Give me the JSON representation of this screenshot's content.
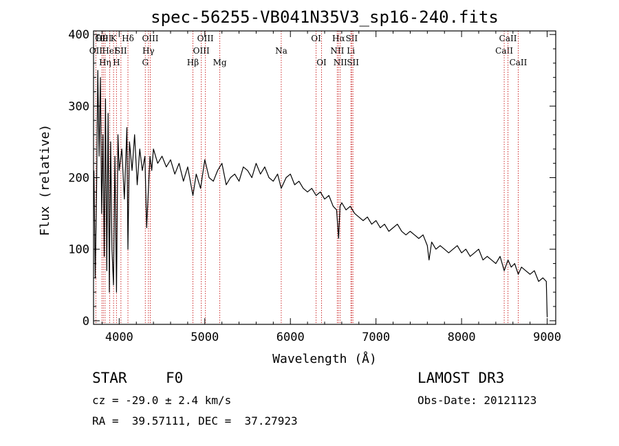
{
  "chart_data": {
    "type": "line",
    "title": "spec-56255-VB041N35V3_sp16-240.fits",
    "xlabel": "Wavelength (Å)",
    "ylabel": "Flux (relative)",
    "xlim": [
      3700,
      9100
    ],
    "ylim": [
      -5,
      405
    ],
    "xticks": [
      4000,
      5000,
      6000,
      7000,
      8000,
      9000
    ],
    "yticks": [
      0,
      100,
      200,
      300,
      400
    ],
    "xtick_labels": [
      "4000",
      "5000",
      "6000",
      "7000",
      "8000",
      "9000"
    ],
    "ytick_labels": [
      "0",
      "100",
      "200",
      "300",
      "400"
    ],
    "series": [
      {
        "name": "flux",
        "x": [
          3705,
          3720,
          3735,
          3750,
          3765,
          3780,
          3795,
          3810,
          3825,
          3840,
          3855,
          3870,
          3885,
          3900,
          3915,
          3933,
          3950,
          3968,
          3985,
          4000,
          4030,
          4060,
          4090,
          4102,
          4120,
          4150,
          4180,
          4210,
          4240,
          4270,
          4300,
          4320,
          4340,
          4360,
          4380,
          4400,
          4450,
          4500,
          4550,
          4600,
          4650,
          4700,
          4750,
          4800,
          4861,
          4900,
          4950,
          5000,
          5050,
          5100,
          5150,
          5200,
          5250,
          5300,
          5350,
          5400,
          5450,
          5500,
          5550,
          5600,
          5650,
          5700,
          5750,
          5800,
          5850,
          5893,
          5950,
          6000,
          6050,
          6100,
          6150,
          6200,
          6250,
          6300,
          6350,
          6400,
          6450,
          6500,
          6540,
          6563,
          6580,
          6600,
          6650,
          6700,
          6750,
          6800,
          6850,
          6900,
          6950,
          7000,
          7050,
          7100,
          7150,
          7200,
          7250,
          7300,
          7350,
          7400,
          7450,
          7500,
          7550,
          7600,
          7620,
          7650,
          7700,
          7750,
          7800,
          7850,
          7900,
          7950,
          8000,
          8050,
          8100,
          8150,
          8200,
          8250,
          8300,
          8350,
          8400,
          8450,
          8498,
          8542,
          8580,
          8620,
          8662,
          8700,
          8750,
          8800,
          8850,
          8900,
          8950,
          8990,
          9000
        ],
        "y": [
          210,
          60,
          180,
          350,
          230,
          340,
          150,
          260,
          90,
          310,
          70,
          290,
          40,
          250,
          100,
          50,
          230,
          40,
          260,
          210,
          240,
          170,
          270,
          100,
          250,
          210,
          260,
          190,
          240,
          210,
          230,
          130,
          180,
          230,
          210,
          240,
          220,
          230,
          215,
          225,
          205,
          220,
          195,
          215,
          175,
          205,
          185,
          225,
          200,
          195,
          210,
          220,
          190,
          200,
          205,
          195,
          215,
          210,
          200,
          220,
          205,
          215,
          200,
          195,
          205,
          185,
          200,
          205,
          190,
          195,
          185,
          180,
          185,
          175,
          180,
          170,
          175,
          160,
          155,
          115,
          160,
          165,
          155,
          160,
          150,
          145,
          140,
          145,
          135,
          140,
          130,
          135,
          125,
          130,
          135,
          125,
          120,
          125,
          120,
          115,
          120,
          105,
          85,
          110,
          100,
          105,
          100,
          95,
          100,
          105,
          95,
          100,
          90,
          95,
          100,
          85,
          90,
          85,
          80,
          90,
          70,
          85,
          75,
          80,
          65,
          75,
          70,
          65,
          70,
          55,
          60,
          55,
          5
        ]
      }
    ],
    "lines": [
      {
        "name": "OII",
        "wavelength": 3727,
        "label_row": 2
      },
      {
        "name": "Hθ",
        "wavelength": 3798,
        "label_row": 1
      },
      {
        "name": "OIII",
        "wavelength": 3815,
        "label_row": 1
      },
      {
        "name": "Hη",
        "wavelength": 3835,
        "label_row": 3
      },
      {
        "name": "HeI",
        "wavelength": 3889,
        "label_row": 2
      },
      {
        "name": "K",
        "wavelength": 3934,
        "label_row": 1
      },
      {
        "name": "H",
        "wavelength": 3968,
        "label_row": 3
      },
      {
        "name": "SII",
        "wavelength": 4020,
        "label_row": 2
      },
      {
        "name": "Hδ",
        "wavelength": 4102,
        "label_row": 1
      },
      {
        "name": "G",
        "wavelength": 4305,
        "label_row": 3
      },
      {
        "name": "Hγ",
        "wavelength": 4341,
        "label_row": 2
      },
      {
        "name": "OIII",
        "wavelength": 4363,
        "label_row": 1
      },
      {
        "name": "Hβ",
        "wavelength": 4861,
        "label_row": 3
      },
      {
        "name": "OIII",
        "wavelength": 4959,
        "label_row": 2
      },
      {
        "name": "OIII",
        "wavelength": 5007,
        "label_row": 1
      },
      {
        "name": "Mg",
        "wavelength": 5175,
        "label_row": 3
      },
      {
        "name": "Na",
        "wavelength": 5893,
        "label_row": 2
      },
      {
        "name": "OI",
        "wavelength": 6300,
        "label_row": 1
      },
      {
        "name": "OI",
        "wavelength": 6364,
        "label_row": 3
      },
      {
        "name": "NII",
        "wavelength": 6548,
        "label_row": 2
      },
      {
        "name": "Hα",
        "wavelength": 6563,
        "label_row": 1
      },
      {
        "name": "NII",
        "wavelength": 6583,
        "label_row": 3
      },
      {
        "name": "Li",
        "wavelength": 6707,
        "label_row": 2
      },
      {
        "name": "SII",
        "wavelength": 6716,
        "label_row": 1
      },
      {
        "name": "SII",
        "wavelength": 6731,
        "label_row": 3
      },
      {
        "name": "CaII",
        "wavelength": 8498,
        "label_row": 2
      },
      {
        "name": "CaII",
        "wavelength": 8542,
        "label_row": 1
      },
      {
        "name": "CaII",
        "wavelength": 8662,
        "label_row": 3
      }
    ],
    "line_color": "#cc2a2a",
    "spectrum_color": "#000000",
    "grid": false
  },
  "info": {
    "object_class": "STAR",
    "subclass": "F0",
    "redshift_text": "cz = -29.0 ± 2.4 km/s",
    "coords_text": "RA =  39.57111, DEC =  37.27923",
    "survey": "LAMOST DR3",
    "obs_date": "Obs-Date: 20121123"
  }
}
